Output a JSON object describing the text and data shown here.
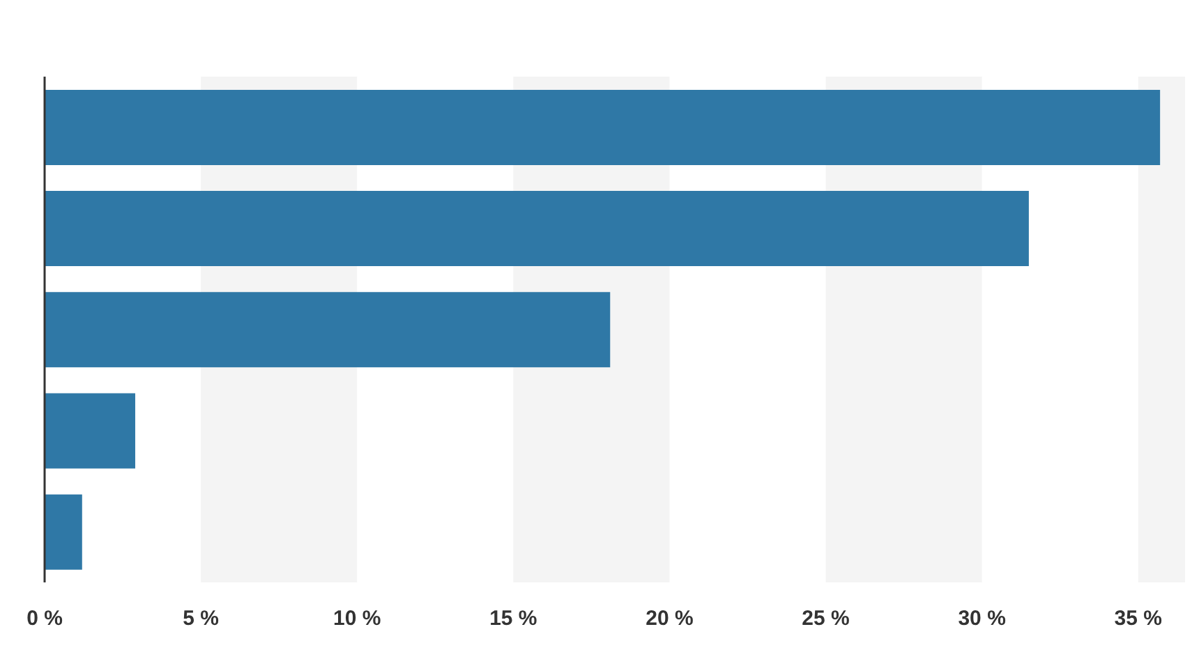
{
  "chart_data": {
    "type": "bar",
    "orientation": "horizontal",
    "categories": [
      null,
      null,
      null,
      null,
      null
    ],
    "values": [
      35.7,
      31.5,
      18.1,
      2.9,
      1.2
    ],
    "color": "#2f78a6",
    "xlim": [
      0,
      36.5
    ],
    "xticks": [
      {
        "value": 0,
        "label": "0 %"
      },
      {
        "value": 5,
        "label": "5 %"
      },
      {
        "value": 10,
        "label": "10 %"
      },
      {
        "value": 15,
        "label": "15 %"
      },
      {
        "value": 20,
        "label": "20 %"
      },
      {
        "value": 25,
        "label": "25 %"
      },
      {
        "value": 30,
        "label": "30 %"
      },
      {
        "value": 35,
        "label": "35 %"
      }
    ],
    "bands": [
      {
        "axis": "x",
        "from": 5,
        "to": 10,
        "color": "#f4f4f4"
      },
      {
        "axis": "x",
        "from": 15,
        "to": 20,
        "color": "#f4f4f4"
      },
      {
        "axis": "x",
        "from": 25,
        "to": 30,
        "color": "#f4f4f4"
      },
      {
        "axis": "x",
        "from": 35,
        "to": 36.5,
        "color": "#f4f4f4"
      }
    ],
    "tick_labels": "x"
  }
}
